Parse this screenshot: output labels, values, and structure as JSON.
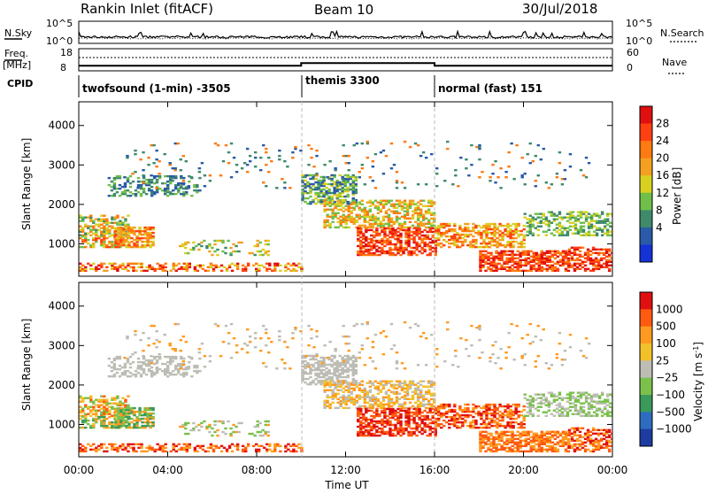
{
  "header": {
    "title": "Rankin Inlet (fitACF)",
    "beam": "Beam 10",
    "date": "30/Jul/2018"
  },
  "colors": {
    "power_scale": [
      "#1432d6",
      "#2a5aa8",
      "#3f8a6a",
      "#6fbf4a",
      "#d8d020",
      "#f3a020",
      "#ff7a10",
      "#ff4010",
      "#e01010"
    ],
    "velocity_scale": [
      "#1e3ca0",
      "#2e6cc0",
      "#3a9a5a",
      "#7ac04a",
      "#bdbdb5",
      "#f2c12a",
      "#ff9a20",
      "#ff5a10",
      "#e01010"
    ],
    "ground_scatter": "#bdbdb5"
  },
  "chart_data": [
    {
      "type": "line",
      "panel": "noise",
      "left_label": "N.Sky",
      "right_label": "N.Search",
      "left_ticks": [
        "10^5",
        "10^0"
      ],
      "right_ticks": [
        "10^5",
        "10^0"
      ]
    },
    {
      "type": "line",
      "panel": "frequency",
      "left_label": "Freq.",
      "left_unit": "[MHz]",
      "left_ticks": [
        18,
        8
      ],
      "right_label": "Nave",
      "right_ticks": [
        60,
        0
      ],
      "cpid_label": "CPID",
      "modes": [
        {
          "label": "twofsound (1-min) -3505",
          "start_h": 0,
          "end_h": 10,
          "freq_mhz": 10.3
        },
        {
          "label": "themis 3300",
          "start_h": 10,
          "end_h": 16,
          "freq_mhz": 11.5
        },
        {
          "label": "normal (fast) 151",
          "start_h": 16,
          "end_h": 24,
          "freq_mhz": 10.3
        }
      ]
    },
    {
      "type": "heatmap",
      "panel": "power",
      "ylabel": "Slant Range [km]",
      "yticks": [
        1000,
        2000,
        3000,
        4000
      ],
      "ylim": [
        180,
        4600
      ],
      "colorbar_label": "Power [dB]",
      "colorbar_ticks": [
        "28",
        "24",
        "20",
        "16",
        "12",
        "8",
        "4"
      ]
    },
    {
      "type": "heatmap",
      "panel": "velocity",
      "ylabel": "Slant Range [km]",
      "yticks": [
        1000,
        2000,
        3000,
        4000
      ],
      "ylim": [
        180,
        4600
      ],
      "colorbar_label": "Velocity [m s",
      "colorbar_label_sup": "-1",
      "colorbar_label_end": "]",
      "colorbar_ticks": [
        "1000",
        "500",
        "100",
        "25",
        "−25",
        "−100",
        "−500",
        "−1000"
      ]
    }
  ],
  "xaxis": {
    "label": "Time UT",
    "ticks": [
      "00:00",
      "04:00",
      "08:00",
      "12:00",
      "16:00",
      "20:00",
      "00:00"
    ],
    "xlim_hours": [
      0,
      24
    ]
  }
}
